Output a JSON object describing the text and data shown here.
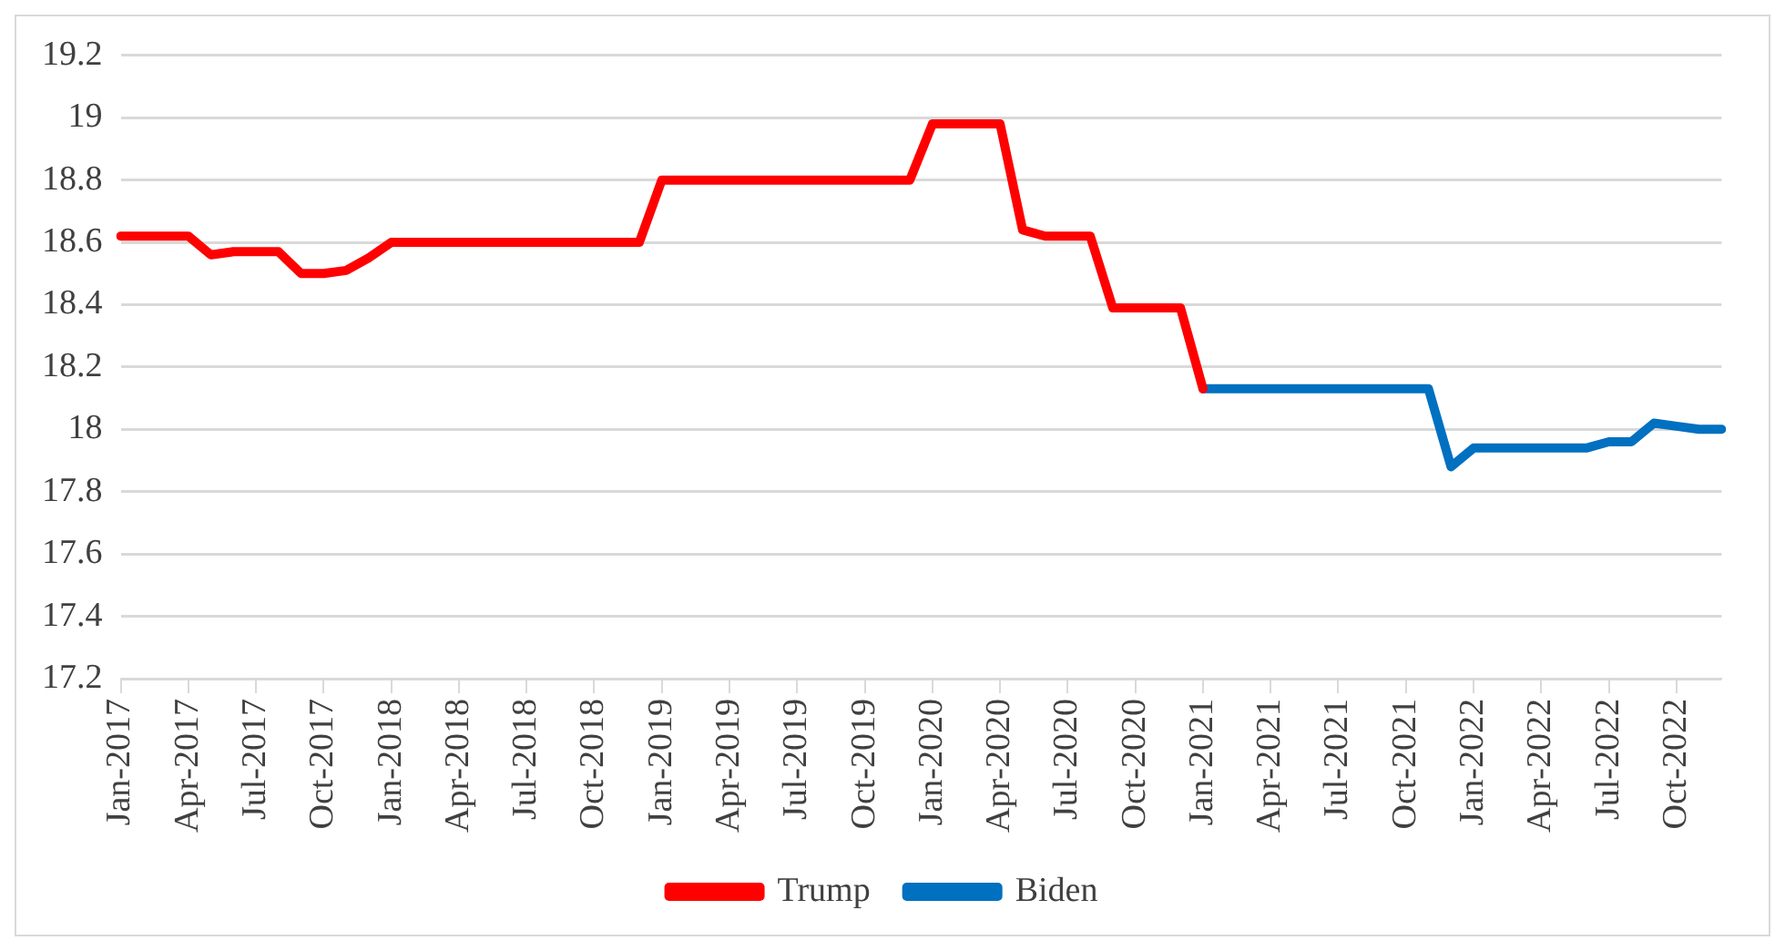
{
  "chart_data": {
    "type": "line",
    "categories": [
      "Jan-2017",
      null,
      null,
      "Apr-2017",
      null,
      null,
      "Jul-2017",
      null,
      null,
      "Oct-2017",
      null,
      null,
      "Jan-2018",
      null,
      null,
      "Apr-2018",
      null,
      null,
      "Jul-2018",
      null,
      null,
      "Oct-2018",
      null,
      null,
      "Jan-2019",
      null,
      null,
      "Apr-2019",
      null,
      null,
      "Jul-2019",
      null,
      null,
      "Oct-2019",
      null,
      null,
      "Jan-2020",
      null,
      null,
      "Apr-2020",
      null,
      null,
      "Jul-2020",
      null,
      null,
      "Oct-2020",
      null,
      null,
      "Jan-2021",
      null,
      null,
      "Apr-2021",
      null,
      null,
      "Jul-2021",
      null,
      null,
      "Oct-2021",
      null,
      null,
      "Jan-2022",
      null,
      null,
      "Apr-2022",
      null,
      null,
      "Jul-2022",
      null,
      null,
      "Oct-2022",
      null,
      null
    ],
    "series": [
      {
        "name": "Trump",
        "color": "#ff0000",
        "values": [
          18.62,
          18.62,
          18.62,
          18.62,
          18.56,
          18.57,
          18.57,
          18.57,
          18.5,
          18.5,
          18.51,
          18.55,
          18.6,
          18.6,
          18.6,
          18.6,
          18.6,
          18.6,
          18.6,
          18.6,
          18.6,
          18.6,
          18.6,
          18.6,
          18.8,
          18.8,
          18.8,
          18.8,
          18.8,
          18.8,
          18.8,
          18.8,
          18.8,
          18.8,
          18.8,
          18.8,
          18.98,
          18.98,
          18.98,
          18.98,
          18.64,
          18.62,
          18.62,
          18.62,
          18.39,
          18.39,
          18.39,
          18.39,
          18.13,
          null,
          null,
          null,
          null,
          null,
          null,
          null,
          null,
          null,
          null,
          null,
          null,
          null,
          null,
          null,
          null,
          null,
          null,
          null,
          null,
          null,
          null,
          null
        ]
      },
      {
        "name": "Biden",
        "color": "#0070c0",
        "values": [
          null,
          null,
          null,
          null,
          null,
          null,
          null,
          null,
          null,
          null,
          null,
          null,
          null,
          null,
          null,
          null,
          null,
          null,
          null,
          null,
          null,
          null,
          null,
          null,
          null,
          null,
          null,
          null,
          null,
          null,
          null,
          null,
          null,
          null,
          null,
          null,
          null,
          null,
          null,
          null,
          null,
          null,
          null,
          null,
          null,
          null,
          null,
          null,
          18.13,
          18.13,
          18.13,
          18.13,
          18.13,
          18.13,
          18.13,
          18.13,
          18.13,
          18.13,
          18.13,
          17.88,
          17.94,
          17.94,
          17.94,
          17.94,
          17.94,
          17.94,
          17.96,
          17.96,
          18.02,
          18.01,
          18.0,
          18.0
        ]
      }
    ],
    "ylim": [
      17.2,
      19.2
    ],
    "yticks": [
      17.2,
      17.4,
      17.6,
      17.8,
      18,
      18.2,
      18.4,
      18.6,
      18.8,
      19,
      19.2
    ],
    "grid": "y",
    "legend": "bottom",
    "marker": "none",
    "line_style": "solid"
  }
}
